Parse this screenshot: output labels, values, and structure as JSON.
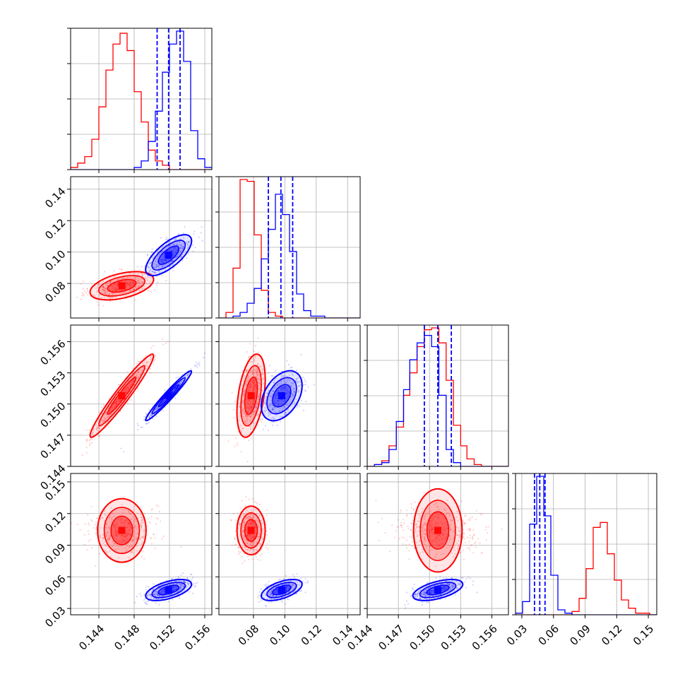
{
  "chart_data": {
    "type": "corner",
    "parameters": [
      {
        "ticks": [
          0.144,
          0.148,
          0.152,
          0.156
        ],
        "tick_labels": [
          "0.144",
          "0.148",
          "0.152",
          "0.156"
        ],
        "range": [
          0.1408,
          0.1568
        ]
      },
      {
        "ticks": [
          0.08,
          0.1,
          0.12,
          0.14
        ],
        "tick_labels": [
          "0.08",
          "0.10",
          "0.12",
          "0.14"
        ],
        "range": [
          0.058,
          0.148
        ]
      },
      {
        "ticks": [
          0.144,
          0.147,
          0.15,
          0.153,
          0.156
        ],
        "tick_labels": [
          "0.144",
          "0.147",
          "0.150",
          "0.153",
          "0.156"
        ],
        "range": [
          0.144,
          0.1576
        ]
      },
      {
        "ticks": [
          0.03,
          0.06,
          0.09,
          0.12,
          0.15
        ],
        "tick_labels": [
          "0.03",
          "0.06",
          "0.09",
          "0.12",
          "0.15"
        ],
        "range": [
          0.024,
          0.158
        ]
      }
    ],
    "samples": [
      {
        "color": "#ff0000",
        "mean": [
          0.1466,
          0.0785,
          0.1508,
          0.104
        ],
        "sd": [
          0.0018,
          0.0045,
          0.002,
          0.0115
        ],
        "rho": [
          [
            0,
            0.45,
            0.96,
            0.0
          ],
          [
            0.45,
            0,
            0.4,
            0.0
          ],
          [
            0.96,
            0.4,
            0,
            0.0
          ],
          [
            0.0,
            0.0,
            0.0,
            0
          ]
        ]
      },
      {
        "color": "#0000ff",
        "mean": [
          0.1519,
          0.098,
          0.1508,
          0.0475
        ],
        "sd": [
          0.0013,
          0.0065,
          0.0012,
          0.005
        ],
        "rho": [
          [
            0,
            0.7,
            0.97,
            0.55
          ],
          [
            0.7,
            0,
            0.4,
            0.55
          ],
          [
            0.97,
            0.4,
            0,
            0.55
          ],
          [
            0.55,
            0.55,
            0.55,
            0
          ]
        ]
      }
    ],
    "quantile_lines": {
      "color": "#0000ff",
      "values": [
        [
          0.1506,
          0.1519,
          0.1532
        ],
        [
          0.0895,
          0.0975,
          0.105
        ],
        [
          0.1495,
          0.1508,
          0.1521
        ],
        [
          0.042,
          0.047,
          0.052
        ]
      ]
    },
    "histograms": [
      {
        "param": 0,
        "bin_edges": [
          0.1408,
          0.1416,
          0.1424,
          0.1432,
          0.144,
          0.1448,
          0.1456,
          0.1464,
          0.1472,
          0.148,
          0.1488,
          0.1496,
          0.1504,
          0.1512,
          0.152,
          0.1528,
          0.1536,
          0.1544,
          0.1552,
          0.156,
          0.1568
        ],
        "red": [
          1,
          3,
          6,
          14,
          29,
          46,
          58,
          63,
          55,
          36,
          22,
          9,
          4,
          2,
          0,
          0,
          0,
          0,
          0,
          0
        ],
        "blue": [
          0,
          0,
          0,
          0,
          0,
          0,
          0,
          0,
          0,
          1,
          4,
          13,
          27,
          45,
          58,
          64,
          50,
          18,
          5,
          1
        ]
      },
      {
        "param": 1,
        "bin_edges": [
          0.058,
          0.0625,
          0.067,
          0.0715,
          0.076,
          0.0805,
          0.085,
          0.0895,
          0.094,
          0.0985,
          0.103,
          0.1075,
          0.112,
          0.1165,
          0.121,
          0.1255,
          0.13,
          0.1345,
          0.139,
          0.1435,
          0.148
        ],
        "red": [
          0,
          3,
          27,
          75,
          74,
          45,
          15,
          3,
          1,
          0,
          0,
          0,
          0,
          0,
          0,
          0,
          0,
          0,
          0,
          0
        ],
        "blue": [
          0,
          0,
          1,
          3,
          8,
          16,
          32,
          48,
          67,
          56,
          36,
          13,
          4,
          1,
          1,
          0,
          0,
          0,
          0,
          0
        ]
      },
      {
        "param": 2,
        "bin_edges": [
          0.144,
          0.1447,
          0.1454,
          0.1461,
          0.1468,
          0.1475,
          0.1481,
          0.1488,
          0.1495,
          0.1502,
          0.1509,
          0.1516,
          0.1523,
          0.153,
          0.1536,
          0.1543,
          0.155,
          0.1557,
          0.1564,
          0.1571,
          0.1576
        ],
        "red": [
          0,
          1,
          3,
          11,
          21,
          38,
          50,
          64,
          73,
          74,
          66,
          46,
          22,
          11,
          4,
          1,
          0,
          0,
          0,
          0
        ],
        "blue": [
          0,
          1,
          2,
          9,
          24,
          41,
          57,
          66,
          70,
          64,
          38,
          9,
          2,
          0,
          0,
          0,
          0,
          0,
          0,
          0
        ]
      },
      {
        "param": 3,
        "bin_edges": [
          0.024,
          0.0307,
          0.0374,
          0.0441,
          0.0508,
          0.0575,
          0.0642,
          0.0709,
          0.0776,
          0.0843,
          0.091,
          0.0977,
          0.1044,
          0.1111,
          0.1178,
          0.1245,
          0.1312,
          0.1379,
          0.1446,
          0.1513,
          0.158
        ],
        "red": [
          0,
          0,
          0,
          0,
          0,
          0,
          0,
          0,
          2,
          10,
          28,
          53,
          56,
          37,
          21,
          9,
          4,
          1,
          1,
          0
        ],
        "blue": [
          1,
          8,
          55,
          84,
          60,
          24,
          3,
          1,
          0,
          0,
          0,
          0,
          0,
          0,
          0,
          0,
          0,
          0,
          0,
          0
        ]
      }
    ],
    "title": "",
    "xlabel": "",
    "ylabel": "",
    "grid": true,
    "legend": "none"
  }
}
